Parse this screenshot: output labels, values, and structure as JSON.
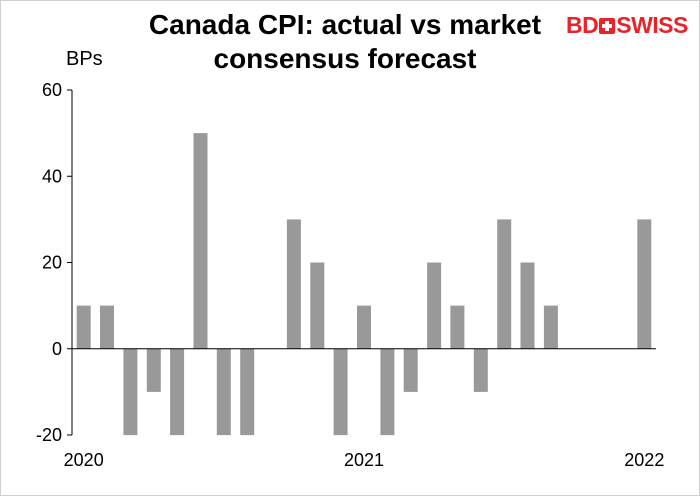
{
  "header": {
    "title_line1": "Canada CPI: actual vs market",
    "title_line2": "consensus forecast"
  },
  "logo": {
    "text_left": "BD",
    "text_right": "SWISS",
    "color": "#e8232a"
  },
  "chart_data": {
    "type": "bar",
    "title": "Canada CPI: actual vs market consensus forecast",
    "ylabel": "BPs",
    "xlabel": "",
    "ylim": [
      -20,
      60
    ],
    "yticks": [
      -20,
      0,
      20,
      40,
      60
    ],
    "x_tick_labels": [
      {
        "label": "2020",
        "at_index": 0
      },
      {
        "label": "2021",
        "at_index": 12
      },
      {
        "label": "2022",
        "at_index": 24
      }
    ],
    "categories": [
      "Jan 2020",
      "Feb 2020",
      "Mar 2020",
      "Apr 2020",
      "May 2020",
      "Jun 2020",
      "Jul 2020",
      "Aug 2020",
      "Sep 2020",
      "Oct 2020",
      "Nov 2020",
      "Dec 2020",
      "Jan 2021",
      "Feb 2021",
      "Mar 2021",
      "Apr 2021",
      "May 2021",
      "Jun 2021",
      "Jul 2021",
      "Aug 2021",
      "Sep 2021",
      "Oct 2021",
      "Nov 2021",
      "Dec 2021",
      "Jan 2022"
    ],
    "values": [
      10,
      10,
      -20,
      -10,
      -20,
      50,
      -20,
      -20,
      0,
      30,
      20,
      -20,
      10,
      -20,
      -10,
      20,
      10,
      -10,
      30,
      20,
      10,
      0,
      0,
      0,
      30
    ],
    "bar_color": "#999999",
    "grid": false
  }
}
